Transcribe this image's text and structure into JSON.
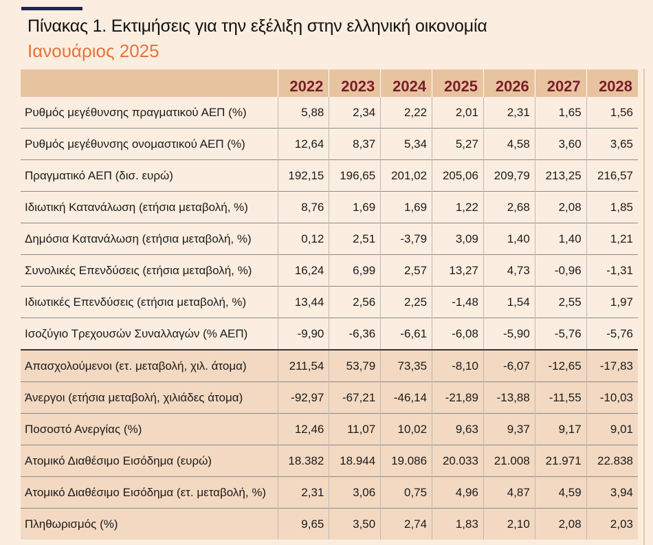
{
  "title": "Πίνακας 1. Εκτιμήσεις για την εξέλιξη στην ελληνική οικονομία",
  "subtitle": "Ιανουάριος 2025",
  "colors": {
    "accent_orange": "#e8713a",
    "header_bg": "#e8c3a0",
    "year_text": "#7a1d2a",
    "page_bg": "#fbeee0",
    "shaded_row": "#f3d9c2",
    "top_rule": "#20234f"
  },
  "table": {
    "years": [
      "2022",
      "2023",
      "2024",
      "2025",
      "2026",
      "2027",
      "2028"
    ],
    "rows": [
      {
        "label": "Ρυθμός μεγέθυνσης πραγματικού ΑΕΠ  (%)",
        "values": [
          "5,88",
          "2,34",
          "2,22",
          "2,01",
          "2,31",
          "1,65",
          "1,56"
        ]
      },
      {
        "label": "Ρυθμός μεγέθυνσης ονομαστικού ΑΕΠ  (%)",
        "values": [
          "12,64",
          "8,37",
          "5,34",
          "5,27",
          "4,58",
          "3,60",
          "3,65"
        ]
      },
      {
        "label": "Πραγματικό ΑΕΠ (δισ. ευρώ)",
        "values": [
          "192,15",
          "196,65",
          "201,02",
          "205,06",
          "209,79",
          "213,25",
          "216,57"
        ]
      },
      {
        "label": "Ιδιωτική Κατανάλωση (ετήσια μεταβολή, %)",
        "values": [
          "8,76",
          "1,69",
          "1,69",
          "1,22",
          "2,68",
          "2,08",
          "1,85"
        ]
      },
      {
        "label": "Δημόσια Κατανάλωση (ετήσια μεταβολή, %)",
        "values": [
          "0,12",
          "2,51",
          "-3,79",
          "3,09",
          "1,40",
          "1,40",
          "1,21"
        ]
      },
      {
        "label": "Συνολικές Επενδύσεις (ετήσια μεταβολή, %)",
        "values": [
          "16,24",
          "6,99",
          "2,57",
          "13,27",
          "4,73",
          "-0,96",
          "-1,31"
        ]
      },
      {
        "label": "Ιδιωτικές Επενδύσεις (ετήσια μεταβολή, %)",
        "values": [
          "13,44",
          "2,56",
          "2,25",
          "-1,48",
          "1,54",
          "2,55",
          "1,97"
        ]
      },
      {
        "label": "Ισοζύγιο Τρεχουσών Συναλλαγών (% ΑΕΠ)",
        "values": [
          "-9,90",
          "-6,36",
          "-6,61",
          "-6,08",
          "-5,90",
          "-5,76",
          "-5,76"
        ]
      },
      {
        "label": "Απασχολούμενοι (ετ. μεταβολή, χιλ. άτομα)",
        "values": [
          "211,54",
          "53,79",
          "73,35",
          "-8,10",
          "-6,07",
          "-12,65",
          "-17,83"
        ]
      },
      {
        "label": "Άνεργοι (ετήσια μεταβολή, χιλιάδες άτομα)",
        "values": [
          "-92,97",
          "-67,21",
          "-46,14",
          "-21,89",
          "-13,88",
          "-11,55",
          "-10,03"
        ]
      },
      {
        "label": "Ποσοστό Ανεργίας (%)",
        "values": [
          "12,46",
          "11,07",
          "10,02",
          "9,63",
          "9,37",
          "9,17",
          "9,01"
        ]
      },
      {
        "label": "Ατομικό Διαθέσιμο Εισόδημα (ευρώ)",
        "values": [
          "18.382",
          "18.944",
          "19.086",
          "20.033",
          "21.008",
          "21.971",
          "22.838"
        ]
      },
      {
        "label": "Ατομικό Διαθέσιμο Εισόδημα (ετ. μεταβολή, %)",
        "values": [
          "2,31",
          "3,06",
          "0,75",
          "4,96",
          "4,87",
          "4,59",
          "3,94"
        ]
      },
      {
        "label": "Πληθωρισμός (%)",
        "values": [
          "9,65",
          "3,50",
          "2,74",
          "1,83",
          "2,10",
          "2,08",
          "2,03"
        ]
      }
    ]
  }
}
